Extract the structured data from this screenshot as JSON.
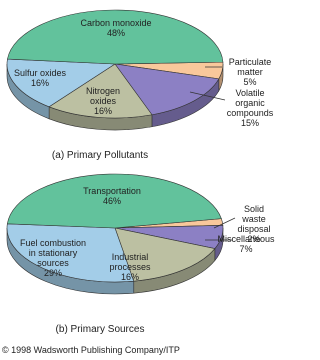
{
  "chart_data": [
    {
      "type": "pie",
      "caption": "(a) Primary Pollutants",
      "categories": [
        "Particulate\nmatter",
        "Volatile organic\ncompounds",
        "Nitrogen\noxides",
        "Sulfur oxides",
        "Carbon monoxide"
      ],
      "values": [
        5,
        15,
        16,
        16,
        48
      ],
      "value_labels": [
        "5%",
        "15%",
        "16%",
        "16%",
        "48%"
      ],
      "colors": [
        "#f9c89b",
        "#8c80c4",
        "#bcc0a2",
        "#a3cde8",
        "#62c29c"
      ]
    },
    {
      "type": "pie",
      "caption": "(b) Primary Sources",
      "categories": [
        "Solid waste\ndisposal",
        "Miscellaneous",
        "Industrial\nprocesses",
        "Fuel combustion\nin stationary\nsources",
        "Transportation"
      ],
      "values": [
        2,
        7,
        16,
        29,
        46
      ],
      "value_labels": [
        "2%",
        "7%",
        "16%",
        "29%",
        "46%"
      ],
      "colors": [
        "#f9c89b",
        "#8c80c4",
        "#bcc0a2",
        "#a3cde8",
        "#62c29c"
      ]
    }
  ],
  "footer": "© 1998 Wadsworth Publishing Company/ITP"
}
